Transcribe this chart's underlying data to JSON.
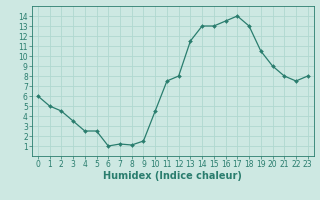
{
  "x": [
    0,
    1,
    2,
    3,
    4,
    5,
    6,
    7,
    8,
    9,
    10,
    11,
    12,
    13,
    14,
    15,
    16,
    17,
    18,
    19,
    20,
    21,
    22,
    23
  ],
  "y": [
    6,
    5,
    4.5,
    3.5,
    2.5,
    2.5,
    1,
    1.2,
    1.1,
    1.5,
    4.5,
    7.5,
    8,
    11.5,
    13,
    13,
    13.5,
    14,
    13,
    10.5,
    9,
    8,
    7.5,
    8
  ],
  "line_color": "#2a7d6e",
  "marker": "D",
  "marker_size": 2,
  "bg_color": "#cde8e2",
  "grid_color": "#b0d8d0",
  "xlabel": "Humidex (Indice chaleur)",
  "ylim": [
    0,
    15
  ],
  "xlim": [
    -0.5,
    23.5
  ],
  "yticks": [
    1,
    2,
    3,
    4,
    5,
    6,
    7,
    8,
    9,
    10,
    11,
    12,
    13,
    14
  ],
  "xticks": [
    0,
    1,
    2,
    3,
    4,
    5,
    6,
    7,
    8,
    9,
    10,
    11,
    12,
    13,
    14,
    15,
    16,
    17,
    18,
    19,
    20,
    21,
    22,
    23
  ],
  "tick_color": "#2a7d6e",
  "label_fontsize": 5.5,
  "axis_label_fontsize": 7
}
